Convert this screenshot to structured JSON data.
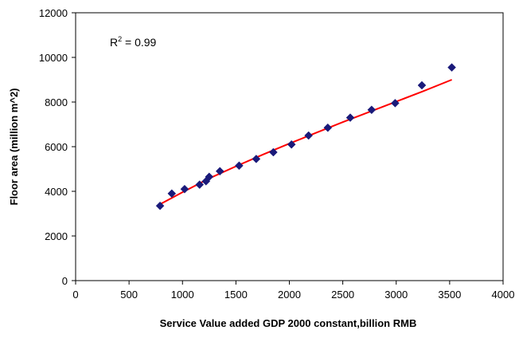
{
  "chart_data": {
    "type": "scatter",
    "title": "",
    "xlabel": "Service Value added GDP 2000 constant,billion RMB",
    "ylabel": "Floor area (million m^2)",
    "xlim": [
      0,
      4000
    ],
    "ylim": [
      0,
      12000
    ],
    "x_ticks": [
      "0",
      "500",
      "1000",
      "1500",
      "2000",
      "2500",
      "3000",
      "3500",
      "4000"
    ],
    "y_ticks": [
      "0",
      "2000",
      "4000",
      "6000",
      "8000",
      "10000",
      "12000"
    ],
    "grid": false,
    "legend": "none",
    "annotation": {
      "base": "R",
      "sup": "2",
      "rest": " = 0.99"
    },
    "series": [
      {
        "type": "scatter",
        "marker": "diamond",
        "color": "#1a1a7a",
        "points": [
          [
            790,
            3350
          ],
          [
            900,
            3900
          ],
          [
            1020,
            4100
          ],
          [
            1160,
            4300
          ],
          [
            1220,
            4450
          ],
          [
            1250,
            4650
          ],
          [
            1350,
            4900
          ],
          [
            1530,
            5150
          ],
          [
            1690,
            5450
          ],
          [
            1850,
            5750
          ],
          [
            2020,
            6100
          ],
          [
            2180,
            6500
          ],
          [
            2360,
            6850
          ],
          [
            2570,
            7300
          ],
          [
            2770,
            7650
          ],
          [
            2990,
            7950
          ],
          [
            3240,
            8750
          ],
          [
            3520,
            9550
          ]
        ]
      },
      {
        "type": "line",
        "style": "trendline",
        "color": "#ff0000",
        "points": [
          [
            790,
            3420
          ],
          [
            1000,
            3960
          ],
          [
            1250,
            4580
          ],
          [
            1500,
            5120
          ],
          [
            1750,
            5640
          ],
          [
            2000,
            6140
          ],
          [
            2250,
            6620
          ],
          [
            2500,
            7100
          ],
          [
            2750,
            7560
          ],
          [
            3000,
            8020
          ],
          [
            3250,
            8480
          ],
          [
            3520,
            9000
          ]
        ]
      }
    ]
  }
}
